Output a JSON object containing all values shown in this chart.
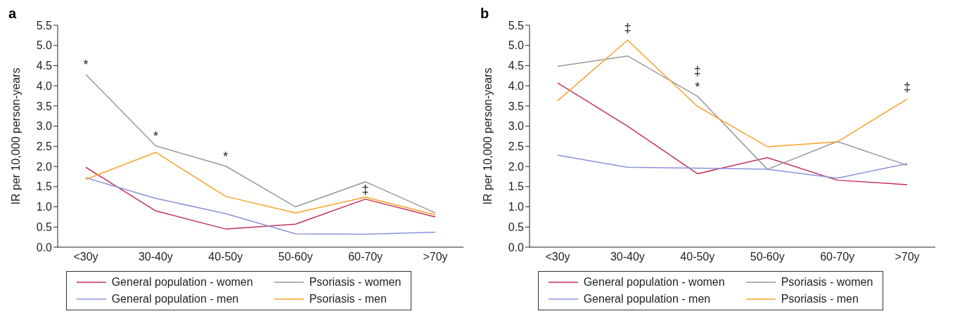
{
  "chart_data": [
    {
      "type": "line",
      "title": "a",
      "ylabel": "IR per 10,000 person-years",
      "categories": [
        "<30y",
        "30-40y",
        "40-50y",
        "50-60y",
        "60-70y",
        ">70y"
      ],
      "ylim": [
        0,
        5.5
      ],
      "yticks": [
        {
          "value": 0,
          "label": "0.0"
        },
        0.5,
        {
          "value": 1,
          "label": "1.0"
        },
        1.5,
        {
          "value": 2,
          "label": "2.0"
        },
        2.5,
        {
          "value": 3,
          "label": "3.0"
        },
        3.5,
        {
          "value": 4,
          "label": "4.0"
        },
        4.5,
        {
          "value": 5,
          "label": "5.0"
        },
        5.5
      ],
      "grid": false,
      "legend": "bottom",
      "marker": "none",
      "line_style": "solid",
      "series": [
        {
          "name": "General population - women",
          "color": "#c2305c",
          "values": [
            1.98,
            0.9,
            0.45,
            0.57,
            1.19,
            0.75
          ]
        },
        {
          "name": "Psoriasis - women",
          "color": "#999999",
          "values": [
            4.28,
            2.51,
            2.01,
            1.0,
            1.62,
            0.85
          ]
        },
        {
          "name": "General population - men",
          "color": "#8a93d8",
          "values": [
            1.72,
            1.21,
            0.83,
            0.33,
            0.32,
            0.37
          ]
        },
        {
          "name": "Psoriasis - men",
          "color": "#f7a325",
          "values": [
            1.68,
            2.35,
            1.26,
            0.85,
            1.24,
            0.8
          ]
        }
      ],
      "annotations": [
        "*",
        "*",
        "*",
        "‡"
      ]
    },
    {
      "type": "line",
      "title": "b",
      "ylabel": "IR per 10,000 person-years",
      "categories": [
        "<30y",
        "30-40y",
        "40-50y",
        "50-60y",
        "60-70y",
        ">70y"
      ],
      "ylim": [
        0,
        5.5
      ],
      "yticks": [
        {
          "value": 0,
          "label": "0.0"
        },
        0.5,
        {
          "value": 1,
          "label": "1.0"
        },
        1.5,
        {
          "value": 2,
          "label": "2.0"
        },
        2.5,
        {
          "value": 3,
          "label": "3.0"
        },
        3.5,
        {
          "value": 4,
          "label": "4.0"
        },
        4.5,
        {
          "value": 5,
          "label": "5.0"
        },
        5.5
      ],
      "grid": false,
      "legend": "bottom",
      "marker": "none",
      "line_style": "solid",
      "series": [
        {
          "name": "General population - women",
          "color": "#c2305c",
          "values": [
            4.07,
            3.0,
            1.82,
            2.22,
            1.66,
            1.55
          ]
        },
        {
          "name": "Psoriasis - women",
          "color": "#999999",
          "values": [
            4.48,
            4.74,
            3.74,
            1.93,
            2.62,
            2.03
          ]
        },
        {
          "name": "General population - men",
          "color": "#8a93d8",
          "values": [
            2.28,
            1.98,
            1.96,
            1.93,
            1.71,
            2.07
          ]
        },
        {
          "name": "Psoriasis - men",
          "color": "#f7a325",
          "values": [
            3.63,
            5.13,
            3.49,
            2.49,
            2.61,
            3.67
          ]
        }
      ],
      "annotations": [
        "‡",
        "‡",
        "*",
        "‡"
      ]
    }
  ]
}
